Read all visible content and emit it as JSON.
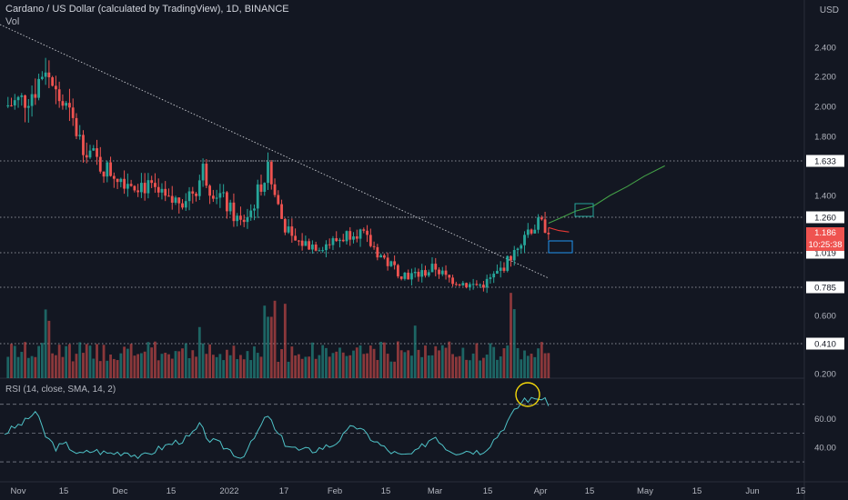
{
  "header": {
    "title": "Cardano / US Dollar (calculated by TradingView), 1D, BINANCE",
    "vol_label": "Vol",
    "currency": "USD"
  },
  "rsi": {
    "label": "RSI (14, close, SMA, 14, 2)",
    "ticks": [
      "60.00",
      "40.00"
    ]
  },
  "price_axis": {
    "ticks": [
      "2.400",
      "2.200",
      "2.000",
      "1.800",
      "1.633",
      "1.400",
      "1.260",
      "1.019",
      "0.785",
      "0.600",
      "0.410",
      "0.200"
    ]
  },
  "labels": {
    "current_price": "1.186",
    "countdown": "10:25:38"
  },
  "colors": {
    "background": "#131722",
    "bull": "#26a69a",
    "bear": "#ef5350",
    "rsi_line": "#4fc3c8",
    "projection_up": "#43a047",
    "projection_down": "#e53935",
    "circle": "#f5d90a"
  },
  "chart_data": {
    "type": "candlestick",
    "x_labels": [
      "Nov",
      "15",
      "Dec",
      "15",
      "2022",
      "17",
      "Feb",
      "15",
      "Mar",
      "15",
      "Apr",
      "15",
      "May",
      "15",
      "Jun",
      "15"
    ],
    "levels": [
      1.633,
      1.26,
      1.019,
      0.785
    ],
    "close_path": [
      [
        0,
        2.0
      ],
      [
        6,
        2.05
      ],
      [
        9,
        2.12
      ],
      [
        12,
        2.28
      ],
      [
        15,
        2.08
      ],
      [
        18,
        1.98
      ],
      [
        22,
        1.78
      ],
      [
        26,
        1.66
      ],
      [
        28,
        1.6
      ],
      [
        32,
        1.55
      ],
      [
        36,
        1.5
      ],
      [
        40,
        1.48
      ],
      [
        44,
        1.42
      ],
      [
        48,
        1.35
      ],
      [
        52,
        1.38
      ],
      [
        56,
        1.45
      ],
      [
        58,
        1.58
      ],
      [
        60,
        1.46
      ],
      [
        63,
        1.4
      ],
      [
        66,
        1.3
      ],
      [
        69,
        1.22
      ],
      [
        72,
        1.3
      ],
      [
        75,
        1.48
      ],
      [
        77,
        1.56
      ],
      [
        79,
        1.4
      ],
      [
        81,
        1.25
      ],
      [
        84,
        1.1
      ],
      [
        88,
        1.08
      ],
      [
        92,
        1.07
      ],
      [
        96,
        1.09
      ],
      [
        100,
        1.14
      ],
      [
        102,
        1.18
      ],
      [
        104,
        1.15
      ],
      [
        108,
        1.05
      ],
      [
        112,
        0.95
      ],
      [
        116,
        0.88
      ],
      [
        120,
        0.86
      ],
      [
        124,
        0.9
      ],
      [
        126,
        0.92
      ],
      [
        129,
        0.85
      ],
      [
        132,
        0.83
      ],
      [
        136,
        0.8
      ],
      [
        139,
        0.8
      ],
      [
        141,
        0.82
      ],
      [
        144,
        0.88
      ],
      [
        147,
        0.96
      ],
      [
        150,
        1.08
      ],
      [
        152,
        1.16
      ],
      [
        154,
        1.19
      ],
      [
        156,
        1.21
      ],
      [
        158,
        1.2
      ],
      [
        159,
        1.186
      ]
    ],
    "projection_up": [
      [
        159,
        1.22
      ],
      [
        163,
        1.26
      ],
      [
        167,
        1.3
      ],
      [
        172,
        1.33
      ],
      [
        177,
        1.4
      ],
      [
        182,
        1.46
      ],
      [
        187,
        1.53
      ],
      [
        193,
        1.6
      ]
    ],
    "projection_down": [
      [
        159,
        1.19
      ],
      [
        162,
        1.17
      ],
      [
        165,
        1.16
      ]
    ],
    "rsi_range": [
      25,
      78
    ],
    "rsi_levels": [
      70,
      50,
      30
    ],
    "rsi_path": [
      [
        0,
        50
      ],
      [
        6,
        58
      ],
      [
        9,
        65
      ],
      [
        12,
        48
      ],
      [
        15,
        40
      ],
      [
        18,
        42
      ],
      [
        22,
        35
      ],
      [
        26,
        38
      ],
      [
        30,
        36
      ],
      [
        36,
        37
      ],
      [
        40,
        33
      ],
      [
        44,
        38
      ],
      [
        48,
        42
      ],
      [
        54,
        47
      ],
      [
        57,
        55
      ],
      [
        60,
        45
      ],
      [
        63,
        42
      ],
      [
        66,
        38
      ],
      [
        69,
        33
      ],
      [
        72,
        42
      ],
      [
        75,
        55
      ],
      [
        77,
        63
      ],
      [
        79,
        52
      ],
      [
        82,
        43
      ],
      [
        86,
        38
      ],
      [
        90,
        38
      ],
      [
        96,
        42
      ],
      [
        100,
        50
      ],
      [
        102,
        56
      ],
      [
        104,
        52
      ],
      [
        108,
        45
      ],
      [
        112,
        38
      ],
      [
        116,
        34
      ],
      [
        120,
        36
      ],
      [
        124,
        45
      ],
      [
        126,
        48
      ],
      [
        129,
        40
      ],
      [
        132,
        37
      ],
      [
        136,
        38
      ],
      [
        139,
        37
      ],
      [
        141,
        40
      ],
      [
        144,
        48
      ],
      [
        147,
        58
      ],
      [
        150,
        68
      ],
      [
        152,
        74
      ],
      [
        154,
        73
      ],
      [
        156,
        75
      ],
      [
        158,
        72
      ],
      [
        159,
        71
      ]
    ]
  }
}
